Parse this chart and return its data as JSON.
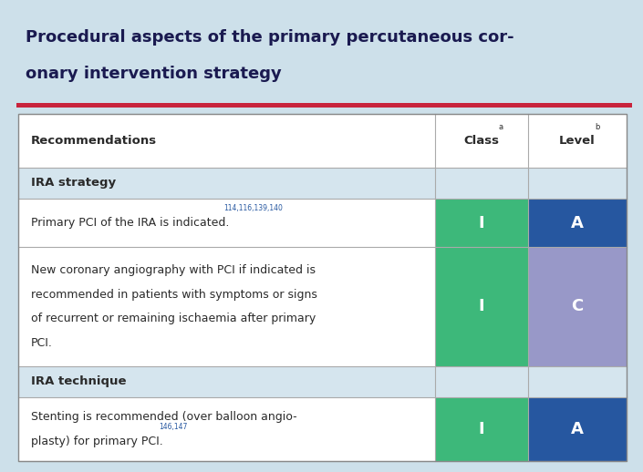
{
  "title_line1": "Procedural aspects of the primary percutaneous cor-",
  "title_line2": "onary intervention strategy",
  "background_color": "#cde0ea",
  "section_bg": "#d5e5ee",
  "green_color": "#3db87a",
  "blue_color": "#2657a0",
  "purple_color": "#9898c8",
  "red_line_color": "#c8233c",
  "title_color": "#1a1a50",
  "text_color": "#2a2a2a",
  "ref_color": "#2657a0",
  "header_row": {
    "recommendations": "Recommendations",
    "class_label": "Class",
    "class_super": "a",
    "level_label": "Level",
    "level_super": "b"
  },
  "rows": [
    {
      "type": "section",
      "text": "IRA strategy"
    },
    {
      "type": "data",
      "text": "Primary PCI of the IRA is indicated.",
      "superscript": "114,116,139,140",
      "class_val": "I",
      "level_val": "A",
      "class_color": "#3db87a",
      "level_color": "#2657a0"
    },
    {
      "type": "data",
      "text": "New coronary angiography with PCI if indicated is\nrecommended in patients with symptoms or signs\nof recurrent or remaining ischaemia after primary\nPCI.",
      "superscript": "",
      "class_val": "I",
      "level_val": "C",
      "class_color": "#3db87a",
      "level_color": "#9898c8"
    },
    {
      "type": "section",
      "text": "IRA technique"
    },
    {
      "type": "data",
      "text_line1": "Stenting is recommended (over balloon angio-",
      "text_line2": "plasty) for primary PCI.",
      "superscript": "146,147",
      "class_val": "I",
      "level_val": "A",
      "class_color": "#3db87a",
      "level_color": "#2657a0"
    }
  ]
}
